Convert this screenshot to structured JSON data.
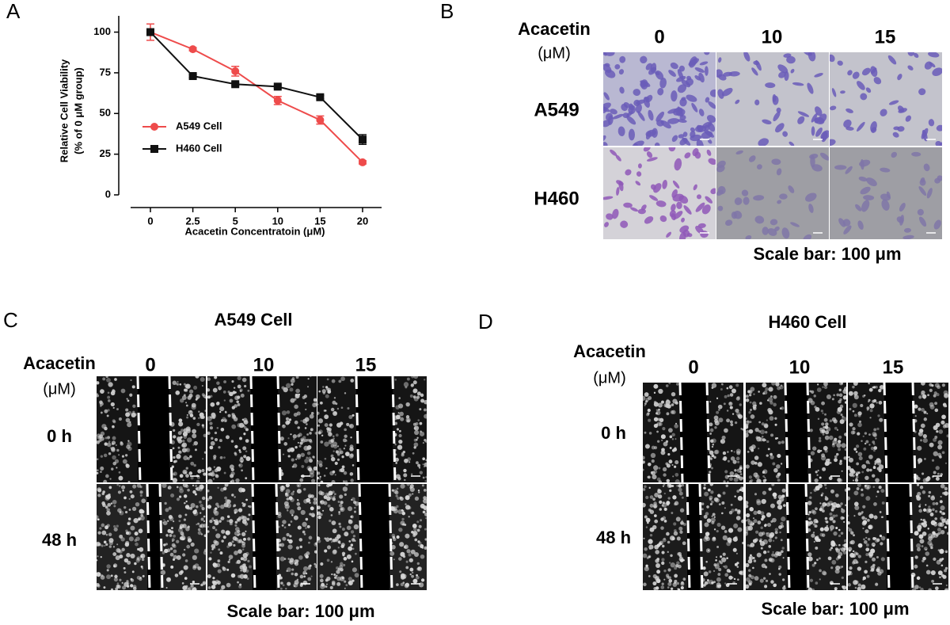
{
  "chart_data": {
    "type": "line",
    "panel_label": "A",
    "y_label": [
      "Relative Cell Viability",
      "(% of  0 μM group)"
    ],
    "x_label": "Acacetin Concentratoin (μM)",
    "categories": [
      "0",
      "2.5",
      "5",
      "10",
      "15",
      "20"
    ],
    "series": [
      {
        "name": "A549 Cell",
        "color": "#ee4b4b",
        "marker": "circle",
        "values": [
          100,
          89.5,
          76,
          58,
          46,
          20
        ],
        "errors": [
          5,
          1,
          3,
          2.5,
          2.5,
          1
        ]
      },
      {
        "name": "H460 Cell",
        "color": "#111111",
        "marker": "square",
        "values": [
          100,
          73,
          68,
          66.5,
          60,
          34
        ],
        "errors": [
          1,
          1,
          1,
          1,
          1,
          3
        ]
      }
    ],
    "ylim": [
      0,
      110
    ],
    "yticks": [
      0,
      25,
      50,
      75,
      100
    ],
    "legend": "center-left"
  },
  "panel_b": {
    "label": "B",
    "row_header": "Acacetin",
    "unit": "(μM)",
    "columns": [
      "0",
      "10",
      "15"
    ],
    "rows": [
      "A549",
      "H460"
    ],
    "scale_bar": "Scale bar: 100 μm"
  },
  "panel_c": {
    "label": "C",
    "title": "A549 Cell",
    "row_header": "Acacetin",
    "unit": "(μM)",
    "columns": [
      "0",
      "10",
      "15"
    ],
    "rows": [
      "0 h",
      "48 h"
    ],
    "scale_bar": "Scale bar: 100 μm"
  },
  "panel_d": {
    "label": "D",
    "title": "H460 Cell",
    "row_header": "Acacetin",
    "unit": "(μM)",
    "columns": [
      "0",
      "10",
      "15"
    ],
    "rows": [
      "0 h",
      "48 h"
    ],
    "scale_bar": "Scale bar: 100 μm"
  }
}
